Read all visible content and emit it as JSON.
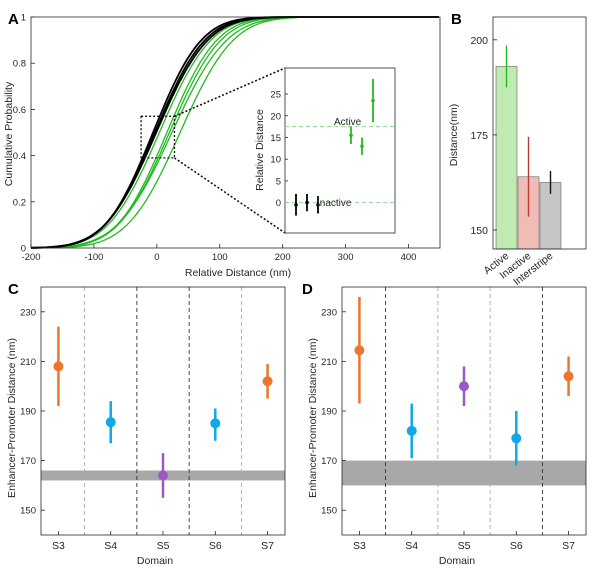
{
  "panel_letters": [
    "A",
    "B",
    "C",
    "D"
  ],
  "colors": {
    "black": "#000000",
    "green": "#22bb22",
    "blue": "#12a7e6",
    "orange": "#e9772f",
    "purple": "#9b59c6",
    "gray_band": "#a8a8a8",
    "bar_active": "#bfeab2",
    "bar_inactive": "#f2bcb6",
    "bar_interstripe": "#c6c6c6",
    "err_active": "#22bb22",
    "err_inactive": "#b83b33",
    "err_interstripe": "#111111"
  },
  "chart_data": [
    {
      "panel": "A",
      "type": "line",
      "xlabel": "Relative Distance (nm)",
      "ylabel": "Cumulative Probability",
      "xlim": [
        -200,
        450
      ],
      "ylim": [
        0,
        1
      ],
      "xticks": [
        "-200",
        "-100",
        "0",
        "100",
        "200",
        "300",
        "400"
      ],
      "yticks": [
        "0",
        "0.2",
        "0.4",
        "0.6",
        "0.8",
        "1"
      ],
      "series": [
        {
          "color": "black",
          "mu": -3,
          "s": 62
        },
        {
          "color": "black",
          "mu": -6,
          "s": 60
        },
        {
          "color": "black",
          "mu": -1,
          "s": 64
        },
        {
          "color": "green",
          "mu": 4,
          "s": 64
        },
        {
          "color": "green",
          "mu": 16,
          "s": 62
        },
        {
          "color": "green",
          "mu": 20,
          "s": 64
        },
        {
          "color": "green",
          "mu": 24,
          "s": 68
        },
        {
          "color": "green",
          "mu": 37,
          "s": 66
        }
      ],
      "zoom_box": {
        "x": [
          -25,
          28
        ],
        "y": [
          0.39,
          0.57
        ]
      }
    },
    {
      "panel": "A-inset",
      "type": "scatter",
      "ylabel": "Relative Distance",
      "ylim": [
        -7,
        31
      ],
      "yticks": [
        "0",
        "5",
        "10",
        "15",
        "20",
        "25"
      ],
      "annotations": [
        "Active",
        "Inactive"
      ],
      "reference_lines": [
        17.5,
        0
      ],
      "points": [
        {
          "group": "Inactive",
          "x": 1,
          "y": -0.5,
          "err": 2.5
        },
        {
          "group": "Inactive",
          "x": 2,
          "y": 0.0,
          "err": 2.0
        },
        {
          "group": "Inactive",
          "x": 3,
          "y": -0.5,
          "err": 2.0
        },
        {
          "group": "Active",
          "x": 6,
          "y": 15.5,
          "err": 2.0
        },
        {
          "group": "Active",
          "x": 7,
          "y": 13.0,
          "err": 2.0
        },
        {
          "group": "Active",
          "x": 8,
          "y": 23.5,
          "err": 5.0
        }
      ]
    },
    {
      "panel": "B",
      "type": "bar",
      "ylabel": "Distance(nm)",
      "ylim": [
        145,
        206
      ],
      "yticks": [
        "150",
        "175",
        "200"
      ],
      "categories": [
        "Active",
        "Inactive",
        "Interstripe"
      ],
      "values": [
        193,
        164,
        162.5
      ],
      "errors": [
        5.5,
        10.5,
        3
      ]
    },
    {
      "panel": "C",
      "type": "scatter",
      "xlabel": "Domain",
      "ylabel": "Enhancer-Promoter Distance (nm)",
      "ylim": [
        140,
        240
      ],
      "yticks": [
        "150",
        "170",
        "190",
        "210",
        "230"
      ],
      "categories": [
        "S3",
        "S4",
        "S5",
        "S6",
        "S7"
      ],
      "band": [
        162,
        166
      ],
      "points": [
        {
          "x": 0.5,
          "y": 208,
          "lo": 192,
          "hi": 224,
          "color": "orange"
        },
        {
          "x": 2.0,
          "y": 185.5,
          "lo": 177,
          "hi": 194,
          "color": "blue"
        },
        {
          "x": 3.5,
          "y": 164,
          "lo": 155,
          "hi": 173,
          "color": "purple"
        },
        {
          "x": 5.0,
          "y": 185,
          "lo": 178,
          "hi": 191,
          "color": "blue"
        },
        {
          "x": 6.5,
          "y": 202,
          "lo": 195,
          "hi": 209,
          "color": "orange"
        }
      ],
      "dividers": [
        {
          "x": 1.25,
          "style": "light"
        },
        {
          "x": 2.75,
          "style": "dark"
        },
        {
          "x": 4.25,
          "style": "dark"
        },
        {
          "x": 5.75,
          "style": "light"
        }
      ]
    },
    {
      "panel": "D",
      "type": "scatter",
      "xlabel": "Domain",
      "ylabel": "Enhancer-Promoter Distance (nm)",
      "ylim": [
        140,
        240
      ],
      "yticks": [
        "150",
        "170",
        "190",
        "210",
        "230"
      ],
      "categories": [
        "S3",
        "S4",
        "S5",
        "S6",
        "S7"
      ],
      "band": [
        160,
        170
      ],
      "points": [
        {
          "x": 0.5,
          "y": 214.5,
          "lo": 193,
          "hi": 236,
          "color": "orange"
        },
        {
          "x": 2.0,
          "y": 182,
          "lo": 171,
          "hi": 193,
          "color": "blue"
        },
        {
          "x": 3.5,
          "y": 200,
          "lo": 192,
          "hi": 208,
          "color": "purple"
        },
        {
          "x": 5.0,
          "y": 179,
          "lo": 168,
          "hi": 190,
          "color": "blue"
        },
        {
          "x": 6.5,
          "y": 204,
          "lo": 196,
          "hi": 212,
          "color": "orange"
        }
      ],
      "dividers": [
        {
          "x": 1.25,
          "style": "dark"
        },
        {
          "x": 2.75,
          "style": "light"
        },
        {
          "x": 4.25,
          "style": "light"
        },
        {
          "x": 5.75,
          "style": "dark"
        }
      ]
    }
  ]
}
